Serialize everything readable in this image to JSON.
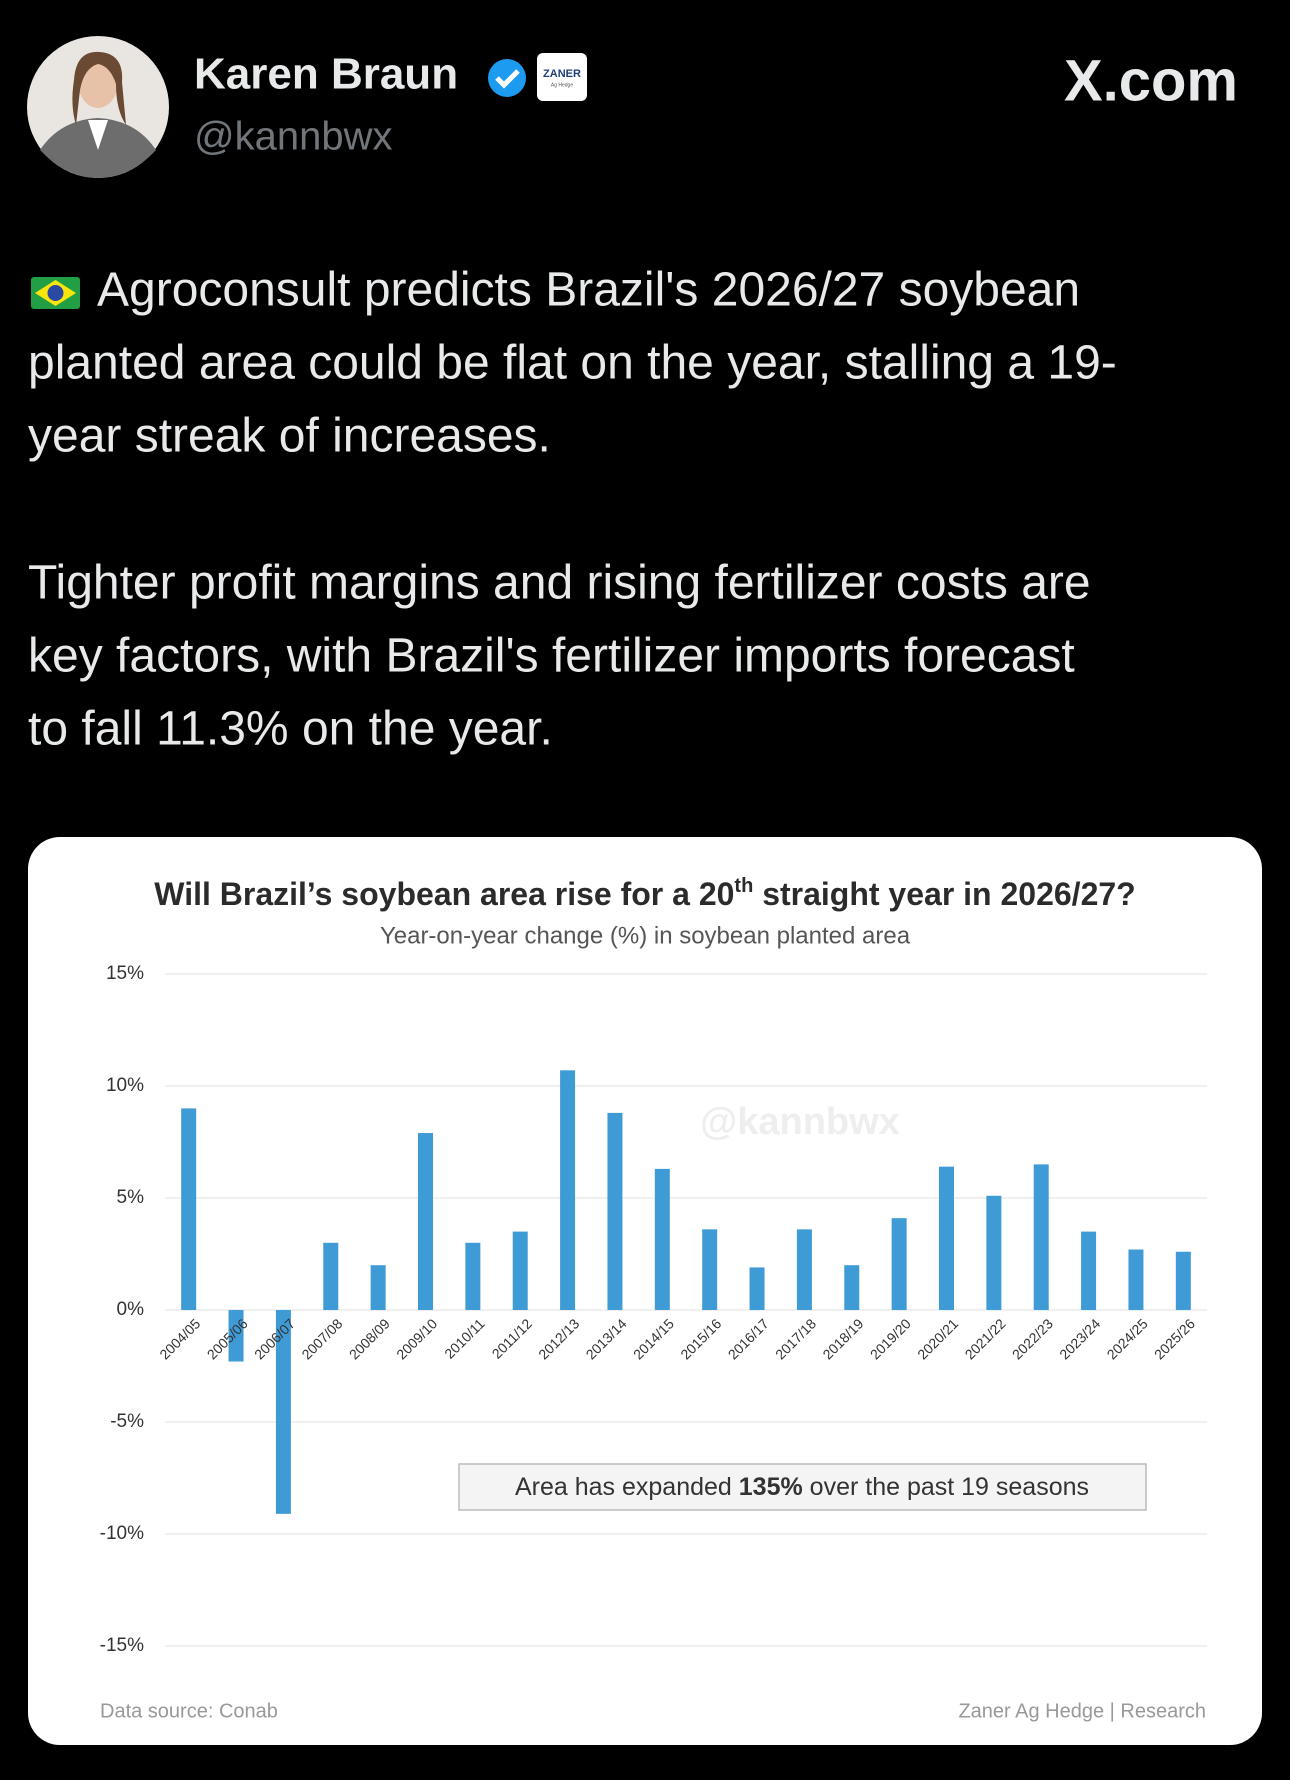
{
  "header": {
    "name": "Karen Braun",
    "handle": "@kannbwx",
    "affiliate": "ZANER",
    "affiliate_sub": "Ag Hedge",
    "site": "X.com"
  },
  "tweet": {
    "paragraphs": [
      [
        "Agroconsult predicts Brazil's 2026/27 soybean",
        "planted area could be flat on the year, stalling a 19-",
        "year streak of increases."
      ],
      [
        "Tighter profit margins and rising fertilizer costs are",
        "key factors, with Brazil's fertilizer imports forecast",
        "to fall 11.3% on the year."
      ]
    ]
  },
  "chart_data": {
    "type": "bar",
    "title": [
      "Will Brazil’s soybean area rise for a 20",
      "th",
      " straight year in 2026/27?"
    ],
    "subtitle": "Year-on-year change (%) in soybean planted area",
    "categories": [
      "2004/05",
      "2005/06",
      "2006/07",
      "2007/08",
      "2008/09",
      "2009/10",
      "2010/11",
      "2011/12",
      "2012/13",
      "2013/14",
      "2014/15",
      "2015/16",
      "2016/17",
      "2017/18",
      "2018/19",
      "2019/20",
      "2020/21",
      "2021/22",
      "2022/23",
      "2023/24",
      "2024/25",
      "2025/26"
    ],
    "values": [
      9.0,
      -2.3,
      -9.1,
      3.0,
      2.0,
      7.9,
      3.0,
      3.5,
      10.7,
      8.8,
      6.3,
      3.6,
      1.9,
      3.6,
      2.0,
      4.1,
      6.4,
      5.1,
      6.5,
      3.5,
      2.7,
      2.6
    ],
    "color": "#3f9bd5",
    "ylim": [
      -15,
      15
    ],
    "yticks": [
      {
        "value": 15,
        "label": "15%"
      },
      {
        "value": 10,
        "label": "10%"
      },
      {
        "value": 5,
        "label": "5%"
      },
      {
        "value": 0,
        "label": "0%"
      },
      {
        "value": -5,
        "label": "-5%"
      },
      {
        "value": -10,
        "label": "-10%"
      },
      {
        "value": -15,
        "label": "-15%"
      }
    ],
    "grid": true,
    "annotation": [
      "Area has expanded ",
      "135%",
      " over the past 19 seasons"
    ],
    "watermark": "@kannbwx",
    "source": "Data source: Conab",
    "credit": "Zaner Ag Hedge | Research"
  }
}
